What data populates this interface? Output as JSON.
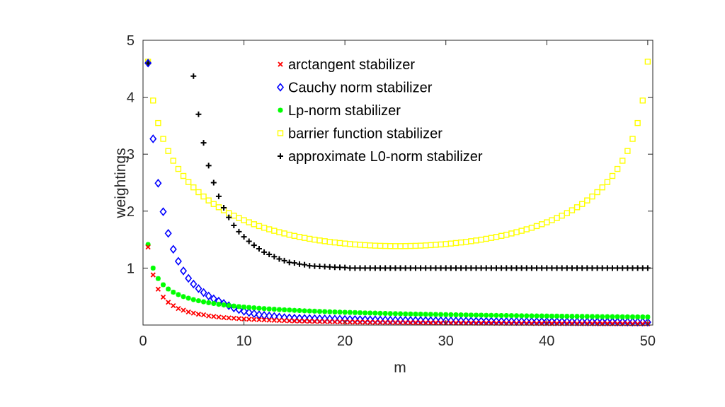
{
  "chart_data": {
    "type": "scatter",
    "title": "",
    "xlabel": "m",
    "ylabel": "weightings",
    "xlim": [
      0,
      50.5
    ],
    "ylim": [
      0,
      5
    ],
    "xticks": [
      0,
      10,
      20,
      30,
      40,
      50
    ],
    "yticks": [
      1,
      2,
      3,
      4,
      5
    ],
    "grid": false,
    "legend_position": "top-center",
    "x": [
      0.5,
      1,
      1.5,
      2,
      2.5,
      3,
      3.5,
      4,
      4.5,
      5,
      5.5,
      6,
      6.5,
      7,
      7.5,
      8,
      8.5,
      9,
      9.5,
      10,
      10.5,
      11,
      11.5,
      12,
      12.5,
      13,
      13.5,
      14,
      14.5,
      15,
      15.5,
      16,
      16.5,
      17,
      17.5,
      18,
      18.5,
      19,
      19.5,
      20,
      20.5,
      21,
      21.5,
      22,
      22.5,
      23,
      23.5,
      24,
      24.5,
      25,
      25.5,
      26,
      26.5,
      27,
      27.5,
      28,
      28.5,
      29,
      29.5,
      30,
      30.5,
      31,
      31.5,
      32,
      32.5,
      33,
      33.5,
      34,
      34.5,
      35,
      35.5,
      36,
      36.5,
      37,
      37.5,
      38,
      38.5,
      39,
      39.5,
      40,
      40.5,
      41,
      41.5,
      42,
      42.5,
      43,
      43.5,
      44,
      44.5,
      45,
      45.5,
      46,
      46.5,
      47,
      47.5,
      48,
      48.5,
      49,
      49.5,
      50
    ],
    "series": [
      {
        "name": "arctangent stabilizer",
        "marker": "x",
        "color": "#ff0000",
        "values": [
          1.37,
          0.88,
          0.63,
          0.49,
          0.4,
          0.34,
          0.29,
          0.26,
          0.23,
          0.21,
          0.19,
          0.18,
          0.16,
          0.15,
          0.14,
          0.13,
          0.126,
          0.119,
          0.113,
          0.107,
          0.102,
          0.098,
          0.094,
          0.09,
          0.086,
          0.083,
          0.08,
          0.077,
          0.075,
          0.072,
          0.07,
          0.068,
          0.066,
          0.064,
          0.062,
          0.06,
          0.059,
          0.057,
          0.056,
          0.054,
          0.053,
          0.052,
          0.051,
          0.049,
          0.048,
          0.047,
          0.046,
          0.045,
          0.045,
          0.044,
          0.043,
          0.042,
          0.041,
          0.041,
          0.04,
          0.039,
          0.038,
          0.038,
          0.037,
          0.036,
          0.036,
          0.035,
          0.035,
          0.034,
          0.034,
          0.033,
          0.033,
          0.032,
          0.032,
          0.031,
          0.031,
          0.03,
          0.03,
          0.03,
          0.029,
          0.029,
          0.028,
          0.028,
          0.028,
          0.027,
          0.027,
          0.027,
          0.026,
          0.026,
          0.026,
          0.025,
          0.025,
          0.025,
          0.025,
          0.024,
          0.024,
          0.024,
          0.023,
          0.023,
          0.023,
          0.023,
          0.022,
          0.022,
          0.022,
          0.022
        ]
      },
      {
        "name": "Cauchy norm stabilizer",
        "marker": "diamond",
        "color": "#0000ff",
        "values": [
          4.6,
          3.27,
          2.49,
          1.99,
          1.61,
          1.33,
          1.12,
          0.95,
          0.82,
          0.72,
          0.64,
          0.57,
          0.51,
          0.46,
          0.42,
          0.38,
          0.34,
          0.3,
          0.27,
          0.24,
          0.22,
          0.2,
          0.18,
          0.17,
          0.16,
          0.15,
          0.14,
          0.13,
          0.125,
          0.12,
          0.118,
          0.116,
          0.114,
          0.112,
          0.11,
          0.108,
          0.106,
          0.104,
          0.102,
          0.1,
          0.098,
          0.097,
          0.095,
          0.094,
          0.092,
          0.091,
          0.089,
          0.088,
          0.086,
          0.085,
          0.084,
          0.083,
          0.082,
          0.081,
          0.08,
          0.079,
          0.078,
          0.077,
          0.076,
          0.075,
          0.074,
          0.073,
          0.072,
          0.071,
          0.07,
          0.069,
          0.068,
          0.067,
          0.066,
          0.065,
          0.065,
          0.064,
          0.064,
          0.063,
          0.063,
          0.062,
          0.062,
          0.061,
          0.061,
          0.06,
          0.06,
          0.059,
          0.059,
          0.058,
          0.058,
          0.057,
          0.057,
          0.056,
          0.056,
          0.055,
          0.055,
          0.054,
          0.054,
          0.053,
          0.053,
          0.052,
          0.052,
          0.051,
          0.051,
          0.05
        ]
      },
      {
        "name": "Lp-norm stabilizer",
        "marker": "asterisk",
        "color": "#00ff00",
        "values": [
          1.414,
          1,
          0.816,
          0.707,
          0.632,
          0.577,
          0.535,
          0.5,
          0.471,
          0.447,
          0.426,
          0.408,
          0.392,
          0.378,
          0.365,
          0.354,
          0.343,
          0.333,
          0.324,
          0.316,
          0.309,
          0.302,
          0.295,
          0.289,
          0.283,
          0.277,
          0.272,
          0.267,
          0.263,
          0.258,
          0.254,
          0.25,
          0.246,
          0.243,
          0.239,
          0.236,
          0.232,
          0.229,
          0.226,
          0.224,
          0.221,
          0.218,
          0.216,
          0.213,
          0.211,
          0.209,
          0.206,
          0.204,
          0.202,
          0.2,
          0.198,
          0.196,
          0.194,
          0.192,
          0.191,
          0.189,
          0.187,
          0.186,
          0.184,
          0.183,
          0.181,
          0.18,
          0.178,
          0.177,
          0.175,
          0.174,
          0.173,
          0.171,
          0.17,
          0.169,
          0.168,
          0.167,
          0.166,
          0.164,
          0.163,
          0.162,
          0.161,
          0.16,
          0.159,
          0.158,
          0.157,
          0.156,
          0.155,
          0.154,
          0.153,
          0.152,
          0.152,
          0.151,
          0.15,
          0.149,
          0.148,
          0.147,
          0.147,
          0.146,
          0.145,
          0.144,
          0.144,
          0.143,
          0.142,
          0.141
        ]
      },
      {
        "name": "barrier function stabilizer",
        "marker": "square",
        "color": "#ffff00",
        "values": [
          4.625,
          3.942,
          3.547,
          3.269,
          3.056,
          2.885,
          2.741,
          2.618,
          2.511,
          2.417,
          2.333,
          2.257,
          2.188,
          2.125,
          2.068,
          2.015,
          1.966,
          1.921,
          1.879,
          1.84,
          1.804,
          1.77,
          1.738,
          1.708,
          1.681,
          1.655,
          1.63,
          1.608,
          1.586,
          1.566,
          1.548,
          1.53,
          1.514,
          1.499,
          1.485,
          1.472,
          1.46,
          1.45,
          1.44,
          1.431,
          1.422,
          1.415,
          1.409,
          1.403,
          1.398,
          1.394,
          1.391,
          1.389,
          1.387,
          1.386,
          1.386,
          1.387,
          1.389,
          1.391,
          1.394,
          1.398,
          1.403,
          1.409,
          1.415,
          1.422,
          1.431,
          1.44,
          1.45,
          1.46,
          1.472,
          1.485,
          1.499,
          1.514,
          1.53,
          1.548,
          1.566,
          1.586,
          1.608,
          1.63,
          1.655,
          1.681,
          1.708,
          1.738,
          1.77,
          1.804,
          1.84,
          1.879,
          1.921,
          1.966,
          2.015,
          2.068,
          2.125,
          2.188,
          2.257,
          2.333,
          2.417,
          2.511,
          2.618,
          2.741,
          2.885,
          3.056,
          3.269,
          3.547,
          3.942,
          4.625
        ]
      },
      {
        "name": "approximate L0-norm stabilizer",
        "marker": "plus",
        "color": "#000000",
        "values": [
          4.6,
          null,
          null,
          null,
          null,
          null,
          null,
          null,
          null,
          4.37,
          3.7,
          3.2,
          2.8,
          2.5,
          2.26,
          2.06,
          1.89,
          1.75,
          1.64,
          1.55,
          1.47,
          1.4,
          1.34,
          1.28,
          1.24,
          1.2,
          1.16,
          1.13,
          1.1,
          1.09,
          1.07,
          1.06,
          1.04,
          1.035,
          1.03,
          1.025,
          1.02,
          1.015,
          1.012,
          1.01,
          1,
          1,
          1,
          1,
          1,
          1,
          1,
          1,
          1,
          1,
          1,
          1,
          1,
          1,
          1,
          1,
          1,
          1,
          1,
          1,
          1,
          1,
          1,
          1,
          1,
          1,
          1,
          1,
          1,
          1,
          1,
          1,
          1,
          1,
          1,
          1,
          1,
          1,
          1,
          1,
          1,
          1,
          1,
          1,
          1,
          1,
          1,
          1,
          1,
          1,
          1,
          1,
          1,
          1,
          1,
          1,
          1,
          1,
          1,
          1
        ]
      }
    ]
  }
}
